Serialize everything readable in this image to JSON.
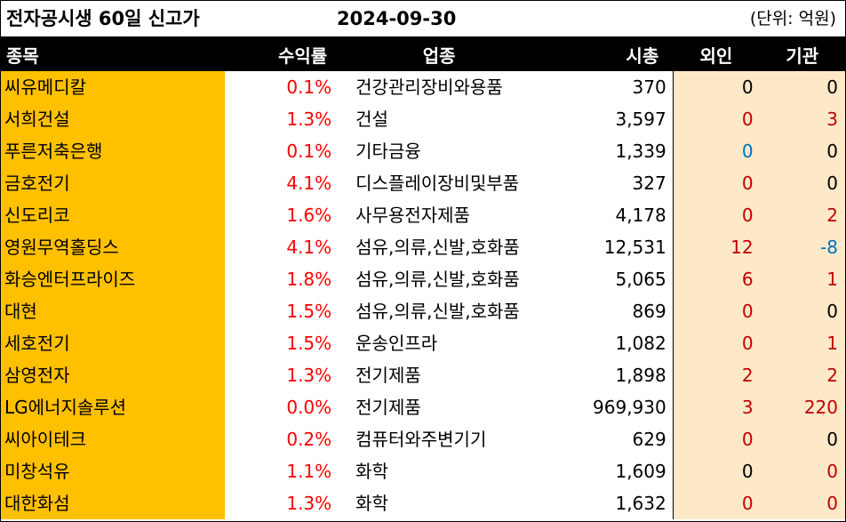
{
  "title": "전자공시생 60일 신고가",
  "date": "2024-09-30",
  "unit": "(단위: 억원)",
  "headers": [
    "종목",
    "수익률",
    "업종",
    "시총",
    "외인",
    "기관"
  ],
  "colors": {
    "name_bg": "#ffc000",
    "return_text": "#ff0000",
    "flow_bg": "#fde9c8",
    "positive": "#c00000",
    "negative": "#0070c0",
    "neutral": "#000000",
    "header_bg": "#000000"
  },
  "rows": [
    {
      "name": "씨유메디칼",
      "ret": "0.1%",
      "industry": "건강관리장비와용품",
      "cap": "370",
      "foreign": "0",
      "foreign_c": "black",
      "inst": "0",
      "inst_c": "black"
    },
    {
      "name": "서희건설",
      "ret": "1.3%",
      "industry": "건설",
      "cap": "3,597",
      "foreign": "0",
      "foreign_c": "red",
      "inst": "3",
      "inst_c": "red"
    },
    {
      "name": "푸른저축은행",
      "ret": "0.1%",
      "industry": "기타금융",
      "cap": "1,339",
      "foreign": "0",
      "foreign_c": "blue",
      "inst": "0",
      "inst_c": "black"
    },
    {
      "name": "금호전기",
      "ret": "4.1%",
      "industry": "디스플레이장비및부품",
      "cap": "327",
      "foreign": "0",
      "foreign_c": "red",
      "inst": "0",
      "inst_c": "black"
    },
    {
      "name": "신도리코",
      "ret": "1.6%",
      "industry": "사무용전자제품",
      "cap": "4,178",
      "foreign": "0",
      "foreign_c": "red",
      "inst": "2",
      "inst_c": "red"
    },
    {
      "name": "영원무역홀딩스",
      "ret": "4.1%",
      "industry": "섬유,의류,신발,호화품",
      "cap": "12,531",
      "foreign": "12",
      "foreign_c": "red",
      "inst": "-8",
      "inst_c": "blue"
    },
    {
      "name": "화승엔터프라이즈",
      "ret": "1.8%",
      "industry": "섬유,의류,신발,호화품",
      "cap": "5,065",
      "foreign": "6",
      "foreign_c": "red",
      "inst": "1",
      "inst_c": "red"
    },
    {
      "name": "대현",
      "ret": "1.5%",
      "industry": "섬유,의류,신발,호화품",
      "cap": "869",
      "foreign": "0",
      "foreign_c": "red",
      "inst": "0",
      "inst_c": "black"
    },
    {
      "name": "세호전기",
      "ret": "1.5%",
      "industry": "운송인프라",
      "cap": "1,082",
      "foreign": "0",
      "foreign_c": "red",
      "inst": "1",
      "inst_c": "red"
    },
    {
      "name": "삼영전자",
      "ret": "1.3%",
      "industry": "전기제품",
      "cap": "1,898",
      "foreign": "2",
      "foreign_c": "red",
      "inst": "2",
      "inst_c": "red"
    },
    {
      "name": "LG에너지솔루션",
      "ret": "0.0%",
      "industry": "전기제품",
      "cap": "969,930",
      "foreign": "3",
      "foreign_c": "red",
      "inst": "220",
      "inst_c": "red"
    },
    {
      "name": "씨아이테크",
      "ret": "0.2%",
      "industry": "컴퓨터와주변기기",
      "cap": "629",
      "foreign": "0",
      "foreign_c": "red",
      "inst": "0",
      "inst_c": "black"
    },
    {
      "name": "미창석유",
      "ret": "1.1%",
      "industry": "화학",
      "cap": "1,609",
      "foreign": "0",
      "foreign_c": "black",
      "inst": "0",
      "inst_c": "red"
    },
    {
      "name": "대한화섬",
      "ret": "1.3%",
      "industry": "화학",
      "cap": "1,632",
      "foreign": "0",
      "foreign_c": "red",
      "inst": "0",
      "inst_c": "red"
    }
  ]
}
